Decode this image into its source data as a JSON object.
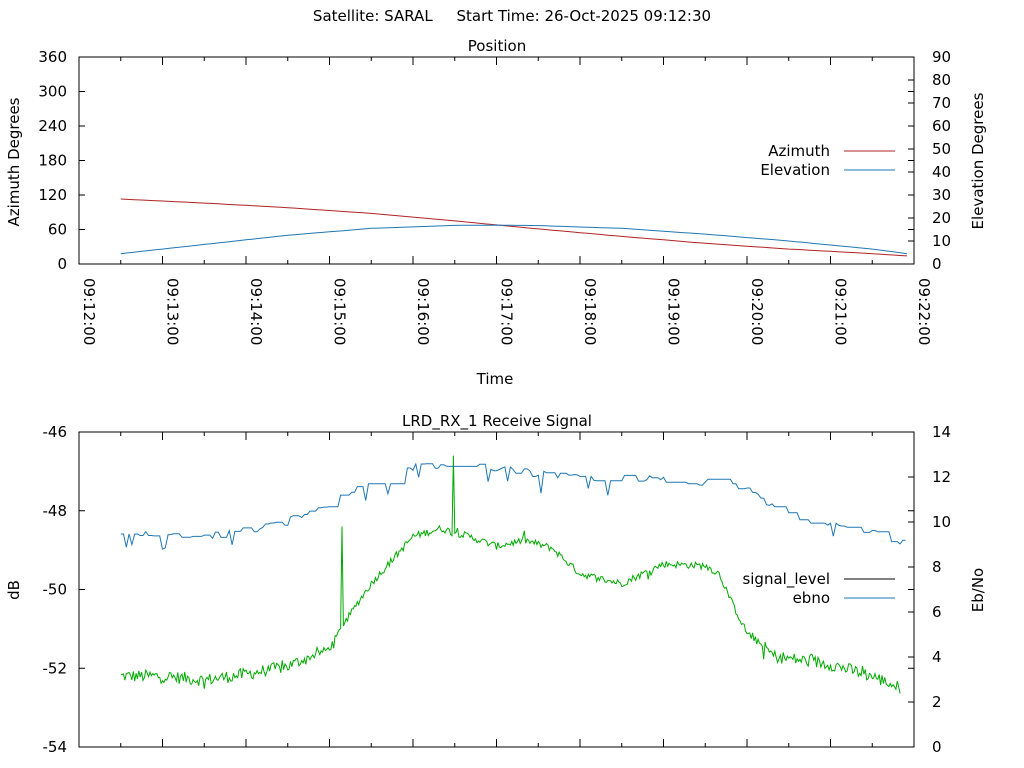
{
  "header": {
    "satellite": "Satellite: SARAL",
    "start_time": "Start Time: 26-Oct-2025 09:12:30"
  },
  "chart_data": [
    {
      "type": "line",
      "title": "Position",
      "xlabel": "Time",
      "ylabel": "Azimuth Degrees",
      "y2label": "Elevation Degrees",
      "xlim": [
        "09:12:00",
        "09:22:00"
      ],
      "x_tick_labels": [
        "09:12:00",
        "09:13:00",
        "09:14:00",
        "09:15:00",
        "09:16:00",
        "09:17:00",
        "09:18:00",
        "09:19:00",
        "09:20:00",
        "09:21:00",
        "09:22:00"
      ],
      "ylim": [
        0,
        360
      ],
      "y_ticks": [
        0,
        60,
        120,
        180,
        240,
        300,
        360
      ],
      "y2lim": [
        0,
        90
      ],
      "y2_ticks": [
        0,
        10,
        20,
        30,
        40,
        50,
        60,
        70,
        80,
        90
      ],
      "grid": false,
      "legend_position": "right",
      "series": [
        {
          "name": "Azimuth",
          "axis": "y",
          "color": "#b22222",
          "x": [
            "09:12:30",
            "09:13:30",
            "09:14:30",
            "09:15:30",
            "09:16:30",
            "09:17:00",
            "09:17:30",
            "09:18:30",
            "09:19:30",
            "09:20:30",
            "09:21:30",
            "09:21:55"
          ],
          "values": [
            113,
            106,
            98,
            88,
            75,
            68,
            61,
            48,
            36,
            26,
            18,
            14
          ]
        },
        {
          "name": "Elevation",
          "axis": "y2",
          "color": "#1f77b4",
          "x": [
            "09:12:30",
            "09:13:30",
            "09:14:30",
            "09:15:30",
            "09:16:30",
            "09:17:00",
            "09:17:30",
            "09:18:30",
            "09:19:30",
            "09:20:30",
            "09:21:30",
            "09:21:55"
          ],
          "values": [
            4.5,
            8.5,
            12.5,
            15.5,
            16.8,
            16.9,
            16.7,
            15.5,
            13,
            10,
            6.5,
            4.5
          ]
        }
      ]
    },
    {
      "type": "line",
      "title": "LRD_RX_1 Receive Signal",
      "xlabel": "",
      "ylabel": "dB",
      "y2label": "Eb/No",
      "xlim": [
        "09:12:00",
        "09:22:00"
      ],
      "ylim": [
        -54,
        -46
      ],
      "y_ticks": [
        -54,
        -52,
        -50,
        -48,
        -46
      ],
      "y2lim": [
        0,
        14
      ],
      "y2_ticks": [
        0,
        2,
        4,
        6,
        8,
        10,
        12,
        14
      ],
      "grid": false,
      "legend_position": "right",
      "series": [
        {
          "name": "signal_level",
          "axis": "y",
          "color": "#00aa00",
          "legend_color": "#000000",
          "x": [
            "09:12:30",
            "09:13:00",
            "09:13:30",
            "09:14:00",
            "09:14:30",
            "09:15:00",
            "09:15:10",
            "09:15:20",
            "09:15:30",
            "09:15:40",
            "09:15:50",
            "09:16:00",
            "09:16:20",
            "09:16:40",
            "09:17:00",
            "09:17:20",
            "09:17:40",
            "09:18:00",
            "09:18:30",
            "09:19:00",
            "09:19:30",
            "09:19:40",
            "09:19:50",
            "09:20:00",
            "09:20:20",
            "09:20:40",
            "09:21:00",
            "09:21:30",
            "09:21:50"
          ],
          "values": [
            -52.2,
            -52.2,
            -52.3,
            -52.15,
            -51.95,
            -51.5,
            -50.9,
            -50.35,
            -49.85,
            -49.45,
            -49.05,
            -48.65,
            -48.45,
            -48.65,
            -48.9,
            -48.75,
            -48.95,
            -49.6,
            -49.85,
            -49.35,
            -49.4,
            -49.6,
            -50.4,
            -51.1,
            -51.7,
            -51.8,
            -51.9,
            -52.2,
            -52.5
          ],
          "spikes": [
            {
              "x": "09:15:09",
              "value": -48.4
            },
            {
              "x": "09:16:29",
              "value": -46.6
            }
          ]
        },
        {
          "name": "ebno",
          "axis": "y2",
          "color": "#1f77b4",
          "x": [
            "09:12:30",
            "09:13:00",
            "09:13:30",
            "09:14:00",
            "09:14:30",
            "09:15:00",
            "09:15:20",
            "09:15:40",
            "09:16:00",
            "09:16:30",
            "09:17:00",
            "09:17:30",
            "09:18:00",
            "09:18:30",
            "09:19:00",
            "09:19:30",
            "09:20:00",
            "09:20:10",
            "09:20:20",
            "09:20:40",
            "09:21:00",
            "09:21:30",
            "09:21:55"
          ],
          "values": [
            9.6,
            9.3,
            9.4,
            9.6,
            10.0,
            10.8,
            11.4,
            11.9,
            12.4,
            12.5,
            12.4,
            12.1,
            12.0,
            11.9,
            11.9,
            11.8,
            11.4,
            11.0,
            10.6,
            10.1,
            10.0,
            9.6,
            9.0
          ]
        }
      ]
    }
  ]
}
